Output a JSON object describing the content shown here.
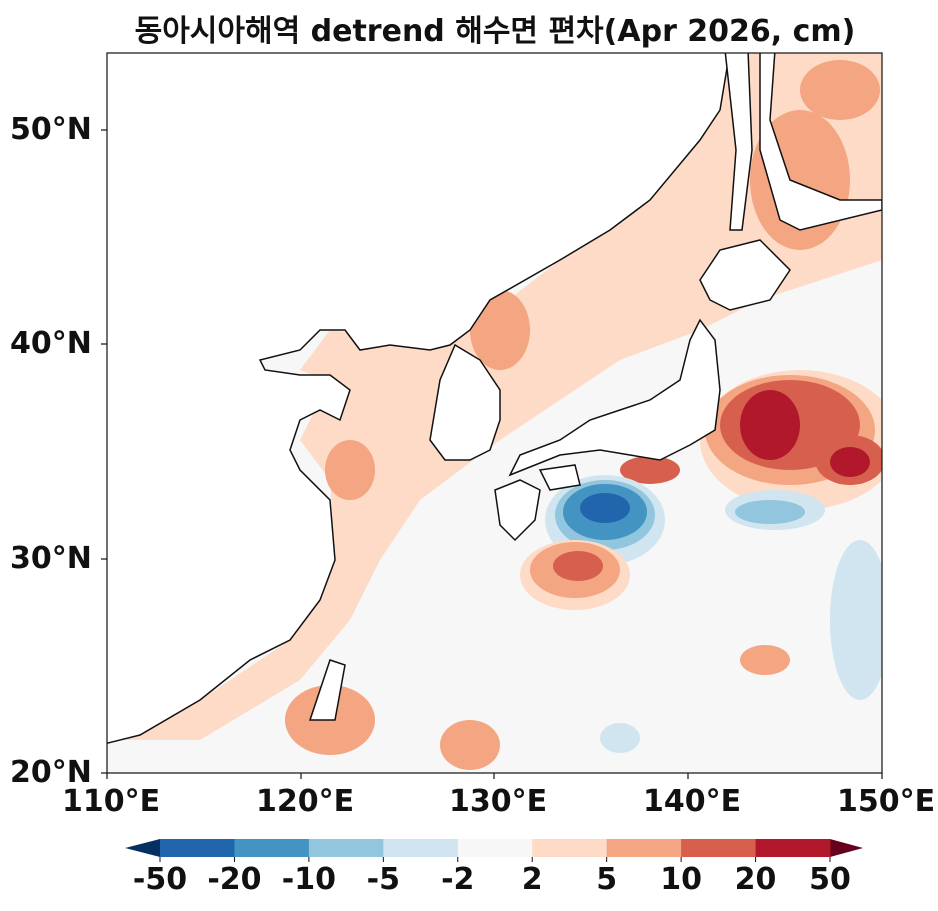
{
  "title": "동아시아해역 detrend 해수면 편차(Apr 2026, cm)",
  "map": {
    "extent_lon": [
      110,
      150
    ],
    "extent_lat": [
      20,
      53.5
    ],
    "lat_ticks": [
      "20°N",
      "30°N",
      "40°N",
      "50°N"
    ],
    "lon_ticks": [
      "110°E",
      "120°E",
      "130°E",
      "140°E",
      "150°E"
    ]
  },
  "colorbar": {
    "levels": [
      "-50",
      "-20",
      "-10",
      "-5",
      "-2",
      "2",
      "5",
      "10",
      "20",
      "50"
    ],
    "colors": [
      "#2166ac",
      "#4393c3",
      "#92c5de",
      "#d1e5f0",
      "#f7f7f7",
      "#fddbc7",
      "#f4a582",
      "#d6604d",
      "#b2182b"
    ],
    "extend_low": "#053061",
    "extend_high": "#67001f"
  }
}
